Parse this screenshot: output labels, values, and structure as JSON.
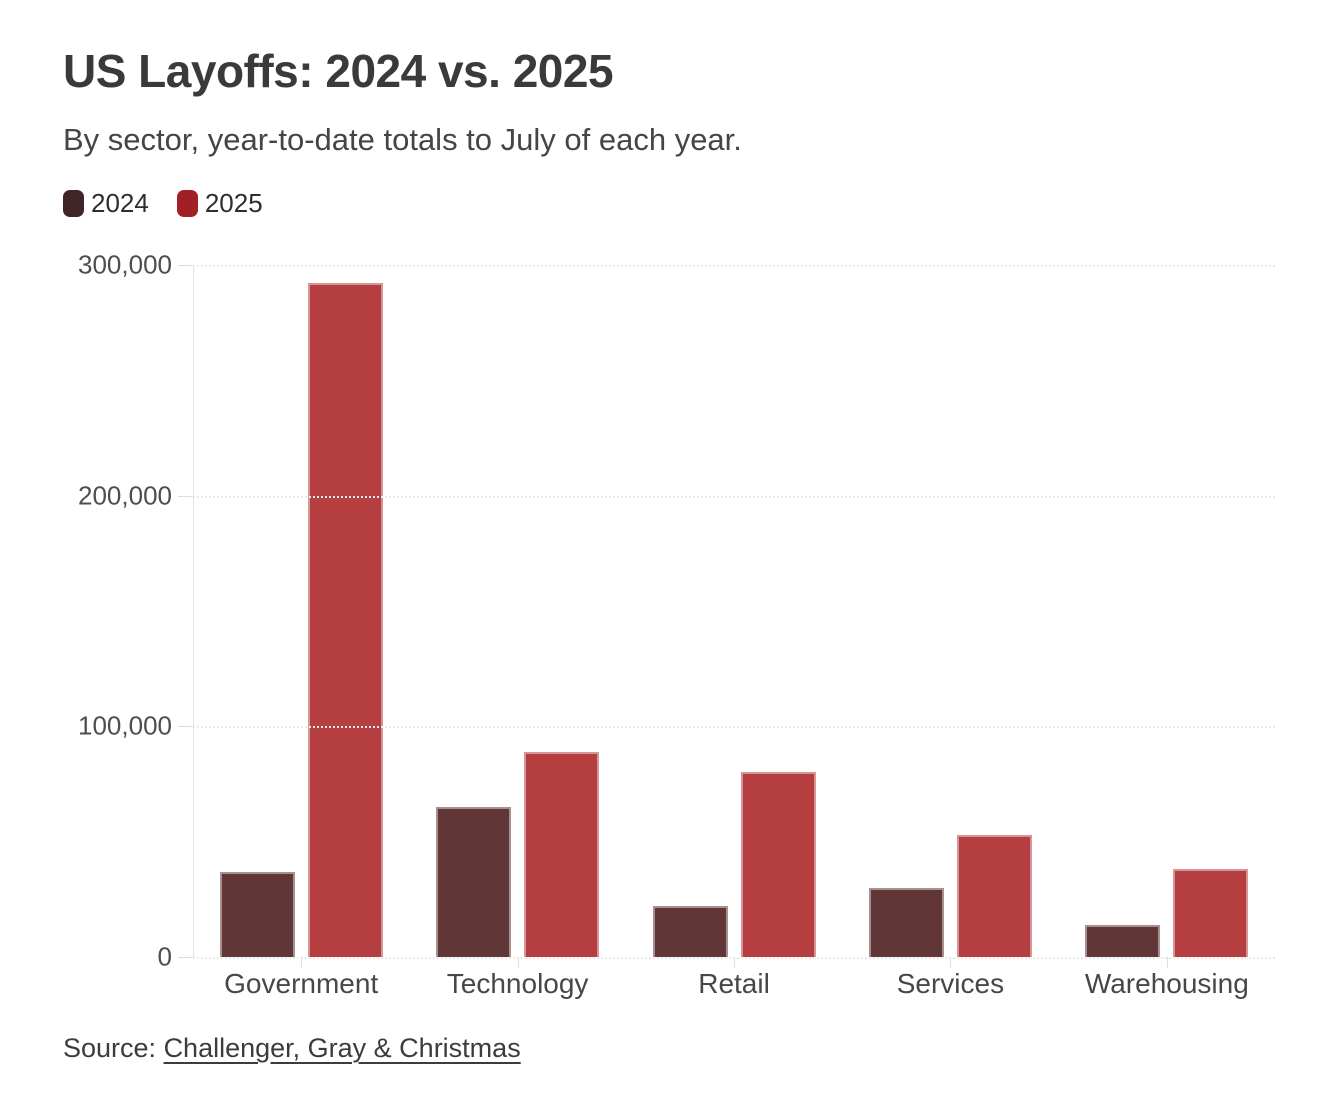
{
  "chart_data": {
    "type": "bar",
    "title": "US Layoffs: 2024 vs. 2025",
    "subtitle": "By sector, year-to-date totals to July of each year.",
    "categories": [
      "Government",
      "Technology",
      "Retail",
      "Services",
      "Warehousing"
    ],
    "series": [
      {
        "name": "2024",
        "values": [
          37000,
          65000,
          22000,
          30000,
          14000
        ],
        "bar_color": "#613637",
        "legend_color": "#3f2527"
      },
      {
        "name": "2025",
        "values": [
          292000,
          89000,
          80000,
          53000,
          38000
        ],
        "bar_color": "#b43e40",
        "legend_color": "#a31f26"
      }
    ],
    "ylim": [
      0,
      300000
    ],
    "y_ticks": [
      {
        "value": 300000,
        "label": "300,000"
      },
      {
        "value": 200000,
        "label": "200,000"
      },
      {
        "value": 100000,
        "label": "100,000"
      },
      {
        "value": 0,
        "label": "0"
      }
    ],
    "grid": "horizontal-dotted",
    "legend_position": "top-left",
    "xlabel": "",
    "ylabel": ""
  },
  "source": {
    "prefix": "Source: ",
    "link_text": "Challenger, Gray & Christmas"
  }
}
